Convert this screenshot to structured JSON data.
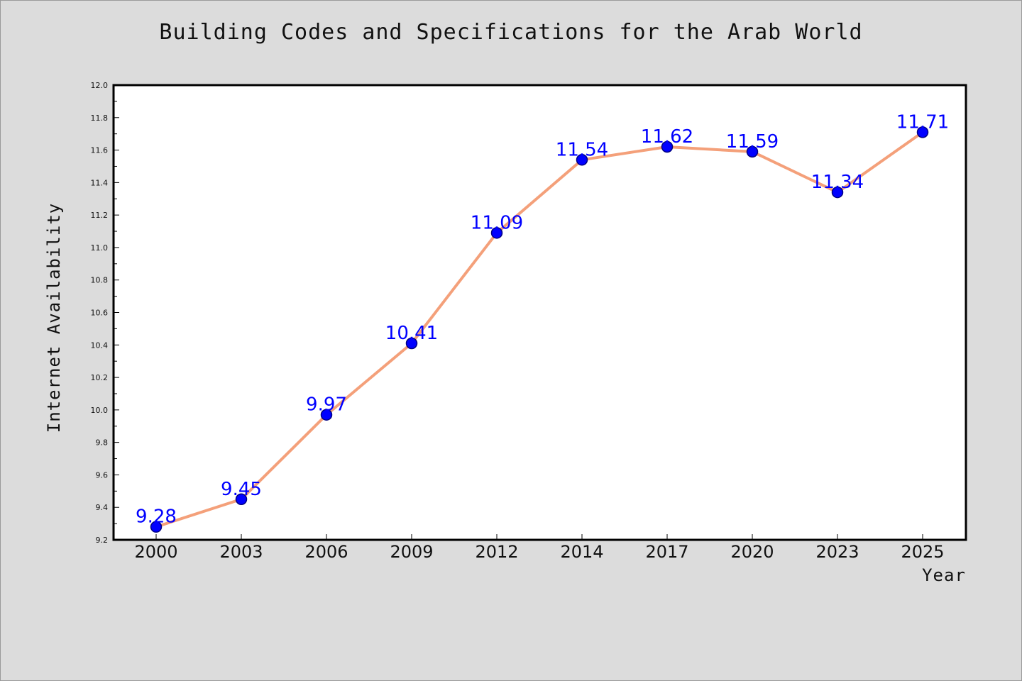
{
  "chart_data": {
    "type": "line",
    "title": "Building Codes and Specifications for the Arab World",
    "xlabel": "Year",
    "ylabel": "Internet Availability",
    "categories": [
      "2000",
      "2003",
      "2006",
      "2009",
      "2012",
      "2014",
      "2017",
      "2020",
      "2023",
      "2025"
    ],
    "series": [
      {
        "values": [
          9.28,
          9.45,
          9.97,
          10.41,
          11.09,
          11.54,
          11.62,
          11.59,
          11.34,
          11.71
        ]
      }
    ],
    "data_labels": [
      "9.28",
      "9.45",
      "9.97",
      "10.41",
      "11.09",
      "11.54",
      "11.62",
      "11.59",
      "11.34",
      "11.71"
    ],
    "ylim": [
      9.2,
      12.0
    ],
    "yticks": [
      "9.2",
      "9.4",
      "9.6",
      "9.8",
      "10.0",
      "10.2",
      "10.4",
      "10.6",
      "10.8",
      "11.0",
      "11.2",
      "11.4",
      "11.6",
      "11.8",
      "12.0"
    ],
    "grid": false,
    "colors": {
      "line": "#f4a07a",
      "marker_fill": "#0000ff",
      "marker_edge": "#000080",
      "data_label": "#0000ff",
      "background": "#dcdcdc",
      "plot_background": "#ffffff"
    }
  }
}
